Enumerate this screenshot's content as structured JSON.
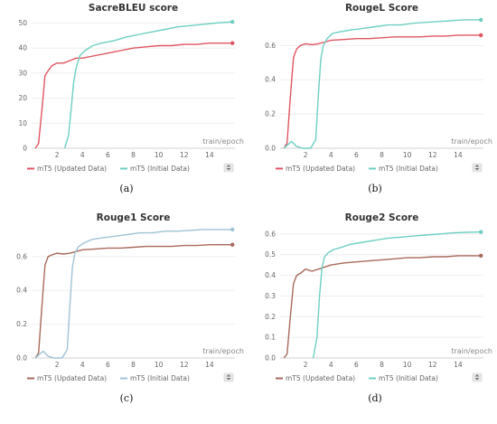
{
  "chart_data": [
    {
      "type": "line",
      "title": "SacreBLEU score",
      "xlabel": "train/epoch",
      "caption": "(a)",
      "xlim": [
        0,
        16
      ],
      "ylim": [
        0,
        52
      ],
      "xticks": [
        2,
        4,
        6,
        8,
        10,
        12,
        14
      ],
      "yticks": [
        0,
        10,
        20,
        30,
        40,
        50
      ],
      "legend_position": "bottom-center",
      "series": [
        {
          "name": "mT5 (Updated Data)",
          "color": "#e05561",
          "x": [
            0.3,
            0.55,
            0.8,
            1.05,
            1.3,
            1.6,
            2.0,
            2.5,
            3.0,
            3.5,
            4.0,
            5.0,
            6.0,
            7.0,
            8.0,
            9.0,
            10.0,
            11.0,
            12.0,
            13.0,
            14.0,
            15.0,
            15.8
          ],
          "y": [
            0,
            2,
            15,
            29,
            31,
            33,
            34,
            34,
            35,
            36,
            36,
            37,
            38,
            39,
            40,
            40.5,
            41,
            41,
            41.5,
            41.5,
            42,
            42,
            42
          ]
        },
        {
          "name": "mT5 (Initial Data)",
          "color": "#6dcfc2",
          "x": [
            2.6,
            2.9,
            3.1,
            3.3,
            3.5,
            3.8,
            4.2,
            4.8,
            5.5,
            6.5,
            7.5,
            8.5,
            9.5,
            10.5,
            11.5,
            12.5,
            13.5,
            14.5,
            15.8
          ],
          "y": [
            0,
            5,
            15,
            26,
            32,
            37,
            39,
            41,
            42,
            43,
            44.5,
            45.5,
            46.5,
            47.5,
            48.5,
            49,
            49.5,
            50,
            50.5
          ]
        }
      ]
    },
    {
      "type": "line",
      "title": "RougeL Score",
      "xlabel": "train/epoch",
      "caption": "(b)",
      "xlim": [
        0,
        16
      ],
      "ylim": [
        0,
        0.76
      ],
      "xticks": [
        2,
        4,
        6,
        8,
        10,
        12,
        14
      ],
      "yticks": [
        0,
        0.2,
        0.4,
        0.6
      ],
      "legend_position": "bottom-center",
      "series": [
        {
          "name": "mT5 (Updated Data)",
          "color": "#e05561",
          "x": [
            0.3,
            0.55,
            0.8,
            1.05,
            1.3,
            1.6,
            2.0,
            2.5,
            3.0,
            3.5,
            4.0,
            5.0,
            6.0,
            7.0,
            8.0,
            9.0,
            10.0,
            11.0,
            12.0,
            13.0,
            14.0,
            15.0,
            15.8
          ],
          "y": [
            0,
            0.03,
            0.3,
            0.53,
            0.58,
            0.6,
            0.61,
            0.605,
            0.61,
            0.62,
            0.63,
            0.635,
            0.64,
            0.64,
            0.645,
            0.65,
            0.65,
            0.65,
            0.655,
            0.655,
            0.66,
            0.66,
            0.66
          ]
        },
        {
          "name": "mT5 (Initial Data)",
          "color": "#6dcfc2",
          "x": [
            0.3,
            0.6,
            0.9,
            1.3,
            1.8,
            2.4,
            2.8,
            3.0,
            3.2,
            3.4,
            3.7,
            4.1,
            4.7,
            5.5,
            6.5,
            7.5,
            8.5,
            9.5,
            10.5,
            11.5,
            12.5,
            13.5,
            14.5,
            15.8
          ],
          "y": [
            0,
            0.02,
            0.04,
            0.01,
            0,
            0,
            0.05,
            0.3,
            0.52,
            0.6,
            0.64,
            0.67,
            0.68,
            0.69,
            0.7,
            0.71,
            0.72,
            0.72,
            0.73,
            0.735,
            0.74,
            0.745,
            0.75,
            0.75
          ]
        }
      ]
    },
    {
      "type": "line",
      "title": "Rouge1 Score",
      "xlabel": "train/epoch",
      "caption": "(c)",
      "xlim": [
        0,
        16
      ],
      "ylim": [
        0,
        0.77
      ],
      "xticks": [
        2,
        4,
        6,
        8,
        10,
        12,
        14
      ],
      "yticks": [
        0,
        0.2,
        0.4,
        0.6
      ],
      "legend_position": "bottom-center",
      "series": [
        {
          "name": "mT5 (Updated Data)",
          "color": "#a86a5c",
          "x": [
            0.3,
            0.55,
            0.8,
            1.05,
            1.3,
            1.6,
            2.0,
            2.5,
            3.0,
            3.5,
            4.0,
            5.0,
            6.0,
            7.0,
            8.0,
            9.0,
            10.0,
            11.0,
            12.0,
            13.0,
            14.0,
            15.0,
            15.8
          ],
          "y": [
            0,
            0.03,
            0.3,
            0.55,
            0.6,
            0.61,
            0.62,
            0.615,
            0.62,
            0.63,
            0.64,
            0.645,
            0.65,
            0.65,
            0.655,
            0.66,
            0.66,
            0.66,
            0.665,
            0.665,
            0.67,
            0.67,
            0.67
          ]
        },
        {
          "name": "mT5 (Initial Data)",
          "color": "#9fc3d6",
          "x": [
            0.3,
            0.6,
            0.9,
            1.3,
            1.8,
            2.4,
            2.8,
            3.0,
            3.2,
            3.4,
            3.7,
            4.1,
            4.7,
            5.5,
            6.5,
            7.5,
            8.5,
            9.5,
            10.5,
            11.5,
            12.5,
            13.5,
            14.5,
            15.8
          ],
          "y": [
            0,
            0.02,
            0.04,
            0.01,
            0,
            0,
            0.05,
            0.3,
            0.53,
            0.62,
            0.66,
            0.68,
            0.7,
            0.71,
            0.72,
            0.73,
            0.74,
            0.74,
            0.75,
            0.75,
            0.755,
            0.76,
            0.76,
            0.76
          ]
        }
      ]
    },
    {
      "type": "line",
      "title": "Rouge2 Score",
      "xlabel": "train/epoch",
      "caption": "(d)",
      "xlim": [
        0,
        16
      ],
      "ylim": [
        0,
        0.63
      ],
      "xticks": [
        2,
        4,
        6,
        8,
        10,
        12,
        14
      ],
      "yticks": [
        0,
        0.1,
        0.2,
        0.3,
        0.4,
        0.5,
        0.6
      ],
      "legend_position": "bottom-center",
      "series": [
        {
          "name": "mT5 (Updated Data)",
          "color": "#a86a5c",
          "x": [
            0.3,
            0.55,
            0.8,
            1.05,
            1.3,
            1.6,
            2.0,
            2.5,
            3.0,
            3.5,
            4.0,
            5.0,
            6.0,
            7.0,
            8.0,
            9.0,
            10.0,
            11.0,
            12.0,
            13.0,
            14.0,
            15.0,
            15.8
          ],
          "y": [
            0,
            0.02,
            0.2,
            0.36,
            0.4,
            0.41,
            0.43,
            0.42,
            0.43,
            0.44,
            0.45,
            0.46,
            0.465,
            0.47,
            0.475,
            0.48,
            0.485,
            0.485,
            0.49,
            0.49,
            0.495,
            0.495,
            0.495
          ]
        },
        {
          "name": "mT5 (Initial Data)",
          "color": "#6dcfc2",
          "x": [
            2.6,
            2.9,
            3.1,
            3.3,
            3.5,
            3.8,
            4.2,
            4.8,
            5.5,
            6.5,
            7.5,
            8.5,
            9.5,
            10.5,
            11.5,
            12.5,
            13.5,
            14.5,
            15.8
          ],
          "y": [
            0,
            0.1,
            0.3,
            0.44,
            0.49,
            0.51,
            0.525,
            0.535,
            0.55,
            0.56,
            0.57,
            0.58,
            0.585,
            0.59,
            0.595,
            0.6,
            0.605,
            0.608,
            0.61
          ]
        }
      ]
    }
  ]
}
